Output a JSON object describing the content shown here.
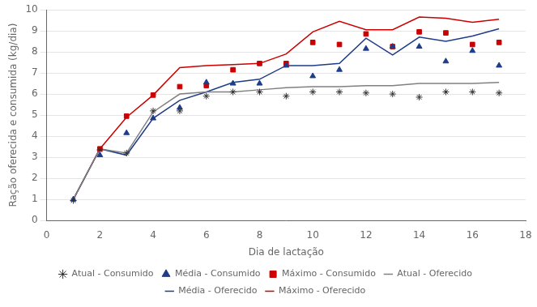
{
  "chart_data": {
    "type": "line",
    "xlabel": "Dia de lactação",
    "ylabel": "Ração oferecida e consumida (kg/dia)",
    "xlim": [
      0,
      18
    ],
    "ylim": [
      0,
      10
    ],
    "xticks": [
      0,
      2,
      4,
      6,
      8,
      10,
      12,
      14,
      16,
      18
    ],
    "yticks": [
      0,
      1,
      2,
      3,
      4,
      5,
      6,
      7,
      8,
      9,
      10
    ],
    "grid": "y",
    "legend": "bottom",
    "series": [
      {
        "name": "Atual - Oferecido",
        "type": "line",
        "color": "#808080",
        "line_style": "solid",
        "x": [
          1,
          2,
          3,
          4,
          5,
          6,
          7,
          8,
          9,
          10,
          11,
          12,
          13,
          14,
          15,
          16,
          17
        ],
        "values": [
          1.0,
          3.4,
          3.2,
          5.15,
          6.0,
          6.1,
          6.1,
          6.2,
          6.3,
          6.35,
          6.35,
          6.4,
          6.4,
          6.5,
          6.5,
          6.5,
          6.55
        ]
      },
      {
        "name": "Média - Oferecido",
        "type": "line",
        "color": "#1f3c88",
        "line_style": "solid",
        "x": [
          1,
          2,
          3,
          4,
          5,
          6,
          7,
          8,
          9,
          10,
          11,
          12,
          13,
          14,
          15,
          16,
          17
        ],
        "values": [
          1.0,
          3.4,
          3.1,
          4.85,
          5.7,
          6.1,
          6.55,
          6.7,
          7.35,
          7.35,
          7.45,
          8.65,
          7.85,
          8.7,
          8.5,
          8.75,
          9.1
        ]
      },
      {
        "name": "Máximo - Oferecido",
        "type": "line",
        "color": "#cc0000",
        "line_style": "solid",
        "x": [
          1,
          2,
          3,
          4,
          5,
          6,
          7,
          8,
          9,
          10,
          11,
          12,
          13,
          14,
          15,
          16,
          17
        ],
        "values": [
          1.0,
          3.4,
          4.9,
          5.95,
          7.25,
          7.35,
          7.4,
          7.45,
          7.9,
          8.95,
          9.45,
          9.05,
          9.05,
          9.65,
          9.6,
          9.4,
          9.55
        ]
      },
      {
        "name": "Atual - Consumido",
        "type": "scatter",
        "color": "#333333",
        "marker": "star",
        "x": [
          1,
          2,
          3,
          4,
          5,
          6,
          7,
          8,
          9,
          10,
          11,
          12,
          13,
          14,
          15,
          16,
          17
        ],
        "values": [
          0.95,
          3.35,
          3.2,
          5.2,
          5.2,
          5.9,
          6.1,
          6.1,
          5.9,
          6.1,
          6.1,
          6.05,
          6.0,
          5.85,
          6.1,
          6.1,
          6.05
        ]
      },
      {
        "name": "Média - Consumido",
        "type": "scatter",
        "color": "#1f3c88",
        "marker": "triangle",
        "x": [
          1,
          2,
          3,
          4,
          5,
          6,
          7,
          8,
          9,
          10,
          11,
          12,
          13,
          14,
          15,
          16,
          17
        ],
        "values": [
          1.0,
          3.1,
          4.15,
          4.85,
          5.35,
          6.55,
          6.5,
          6.5,
          7.35,
          6.85,
          7.15,
          8.15,
          8.25,
          8.25,
          7.55,
          8.05,
          7.35
        ]
      },
      {
        "name": "Máximo - Consumido",
        "type": "scatter",
        "color": "#cc0000",
        "marker": "square",
        "x": [
          2,
          3,
          4,
          5,
          6,
          7,
          8,
          9,
          10,
          11,
          12,
          13,
          14,
          15,
          16,
          17
        ],
        "values": [
          3.4,
          4.95,
          5.95,
          6.35,
          6.4,
          7.15,
          7.45,
          7.45,
          8.45,
          8.35,
          8.85,
          8.25,
          8.95,
          8.9,
          8.35,
          8.45
        ]
      }
    ]
  }
}
